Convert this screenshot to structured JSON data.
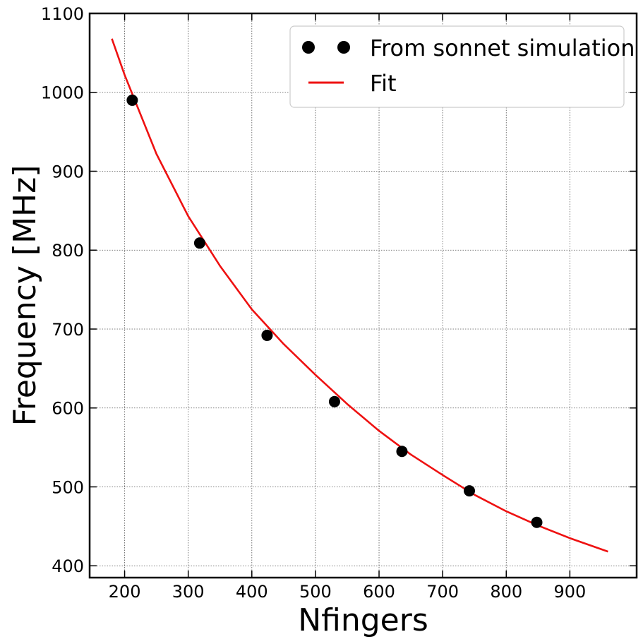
{
  "chart_data": {
    "type": "scatter",
    "xlabel": "Nfingers",
    "ylabel": "Frequency [MHz]",
    "xlim": [
      145,
      1005
    ],
    "ylim": [
      385,
      1100
    ],
    "xticks": [
      200,
      300,
      400,
      500,
      600,
      700,
      800,
      900
    ],
    "yticks": [
      400,
      500,
      600,
      700,
      800,
      900,
      1000,
      1100
    ],
    "grid": true,
    "grid_style": "dotted",
    "legend_position": "top-right",
    "series": [
      {
        "name": "From sonnet simulation",
        "kind": "scatter",
        "color": "#000000",
        "x": [
          212,
          318,
          424,
          530,
          636,
          742,
          848
        ],
        "y": [
          990,
          809,
          692,
          608,
          545,
          495,
          455
        ]
      },
      {
        "name": "Fit",
        "kind": "line",
        "color": "#ee1111",
        "x": [
          180,
          200,
          250,
          300,
          350,
          400,
          450,
          500,
          550,
          600,
          650,
          700,
          750,
          800,
          850,
          900,
          960
        ],
        "y": [
          1068,
          1022,
          922,
          843,
          780,
          725,
          681,
          642,
          605,
          571,
          541,
          515,
          490,
          469,
          451,
          435,
          418
        ]
      }
    ]
  }
}
